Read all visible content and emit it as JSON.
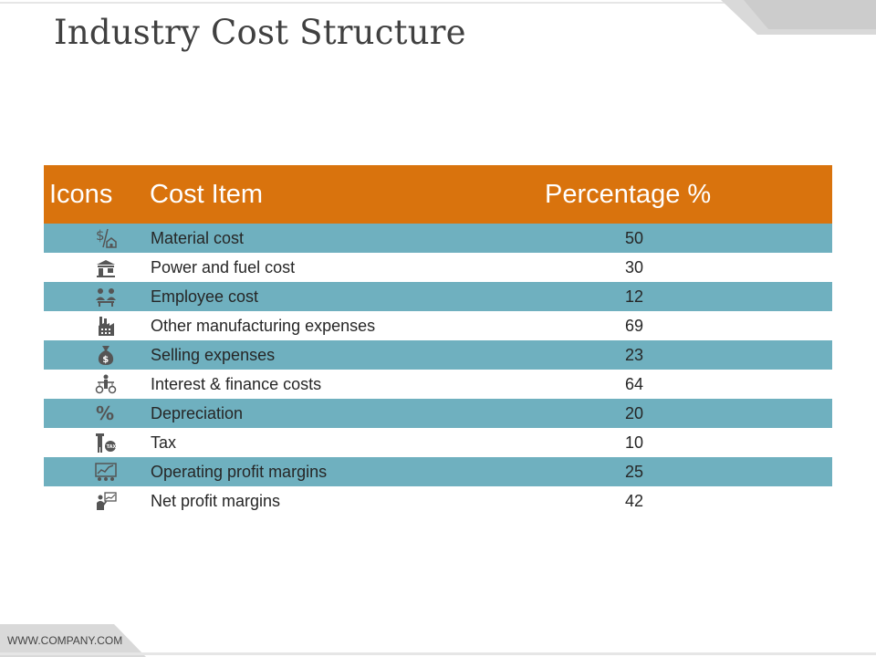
{
  "title": "Industry Cost Structure",
  "footer": "WWW.COMPANY.COM",
  "table": {
    "headers": {
      "icons": "Icons",
      "item": "Cost Item",
      "percentage": "Percentage %"
    },
    "rows": [
      {
        "icon": "dollar-house-icon",
        "item": "Material cost",
        "value": "50"
      },
      {
        "icon": "fuel-station-icon",
        "item": "Power and fuel cost",
        "value": "30"
      },
      {
        "icon": "employees-desk-icon",
        "item": "Employee cost",
        "value": "12"
      },
      {
        "icon": "factory-icon",
        "item": "Other manufacturing expenses",
        "value": "69"
      },
      {
        "icon": "money-bag-icon",
        "item": "Selling expenses",
        "value": "23"
      },
      {
        "icon": "balance-scale-person-icon",
        "item": "Interest & finance costs",
        "value": "64"
      },
      {
        "icon": "percent-icon",
        "item": "Depreciation",
        "value": "20"
      },
      {
        "icon": "tax-person-icon",
        "item": "Tax",
        "value": "10"
      },
      {
        "icon": "profit-chart-icon",
        "item": "Operating profit margins",
        "value": "25"
      },
      {
        "icon": "presenter-chart-icon",
        "item": "Net profit margins",
        "value": "42"
      }
    ]
  },
  "colors": {
    "header_bg": "#d9730d",
    "stripe": "#6fb0bf",
    "text": "#262626",
    "title": "#404040"
  }
}
